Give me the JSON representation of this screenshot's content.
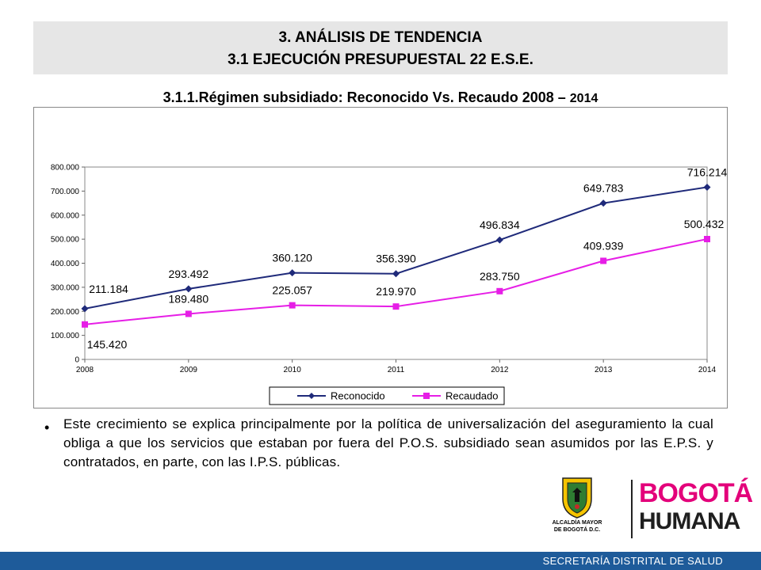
{
  "header": {
    "line1": "3. ANÁLISIS DE TENDENCIA",
    "line2": "3.1 EJECUCIÓN PRESUPUESTAL 22 E.S.E."
  },
  "subtitle": {
    "main": "3.1.1.Régimen subsidiado: Reconocido Vs. Recaudo 2008 – ",
    "year": "2014"
  },
  "chart_data": {
    "type": "line",
    "x": [
      "2008",
      "2009",
      "2010",
      "2011",
      "2012",
      "2013",
      "2014"
    ],
    "series": [
      {
        "name": "Reconocido",
        "values": [
          211184,
          293492,
          360120,
          356390,
          496834,
          649783,
          716214
        ],
        "labels": [
          "211.184",
          "293.492",
          "360.120",
          "356.390",
          "496.834",
          "649.783",
          "716.214"
        ],
        "color": "#1f2a7a",
        "marker": "diamond"
      },
      {
        "name": "Recaudado",
        "values": [
          145420,
          189480,
          225057,
          219970,
          283750,
          409939,
          500432
        ],
        "labels": [
          "145.420",
          "189.480",
          "225.057",
          "219.970",
          "283.750",
          "409.939",
          "500.432"
        ],
        "color": "#e61ee6",
        "marker": "square"
      }
    ],
    "ylim": [
      0,
      800000
    ],
    "yticks": [
      "0",
      "100.000",
      "200.000",
      "300.000",
      "400.000",
      "500.000",
      "600.000",
      "700.000",
      "800.000"
    ],
    "grid": false,
    "legend": "bottom-center"
  },
  "body": {
    "bullet": "•",
    "text": "Este crecimiento se explica principalmente por la política de universalización del aseguramiento la cual obliga a que los servicios que estaban por fuera del P.O.S. subsidiado sean asumidos por las E.P.S. y contratados, en parte, con las I.P.S. públicas."
  },
  "logo": {
    "crest_line1": "ALCALDÍA MAYOR",
    "crest_line2": "DE BOGOTÁ D.C.",
    "brand_line1": "BOGOTÁ",
    "brand_line2": "HUMANA"
  },
  "footer": {
    "text": "SECRETARÍA DISTRITAL DE SALUD",
    "color": "#1e5b9a"
  }
}
